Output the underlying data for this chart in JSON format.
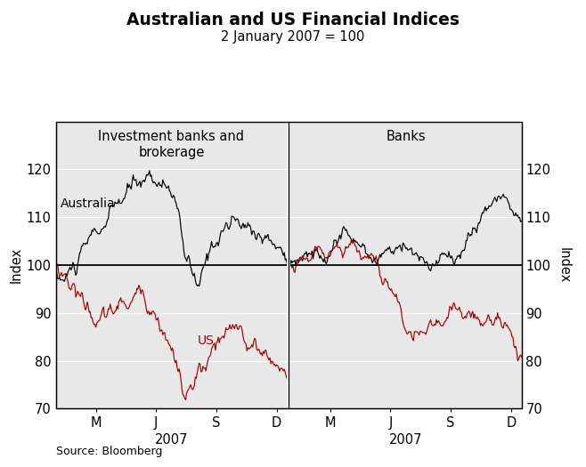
{
  "title": "Australian and US Financial Indices",
  "subtitle": "2 January 2007 = 100",
  "ylabel_left": "Index",
  "ylabel_right": "Index",
  "source": "Source: Bloomberg",
  "panel1_label": "Investment banks and\nbrokerage",
  "panel2_label": "Banks",
  "aus_label": "Australia",
  "us_label": "US",
  "aus_color": "#000000",
  "us_color": "#aa0000",
  "ylim": [
    70,
    130
  ],
  "yticks": [
    70,
    80,
    90,
    100,
    110,
    120
  ],
  "xtick_labels": [
    "M",
    "J",
    "S",
    "D"
  ],
  "year_label": "2007",
  "background_color": "#e8e8e8",
  "n_points": 243
}
